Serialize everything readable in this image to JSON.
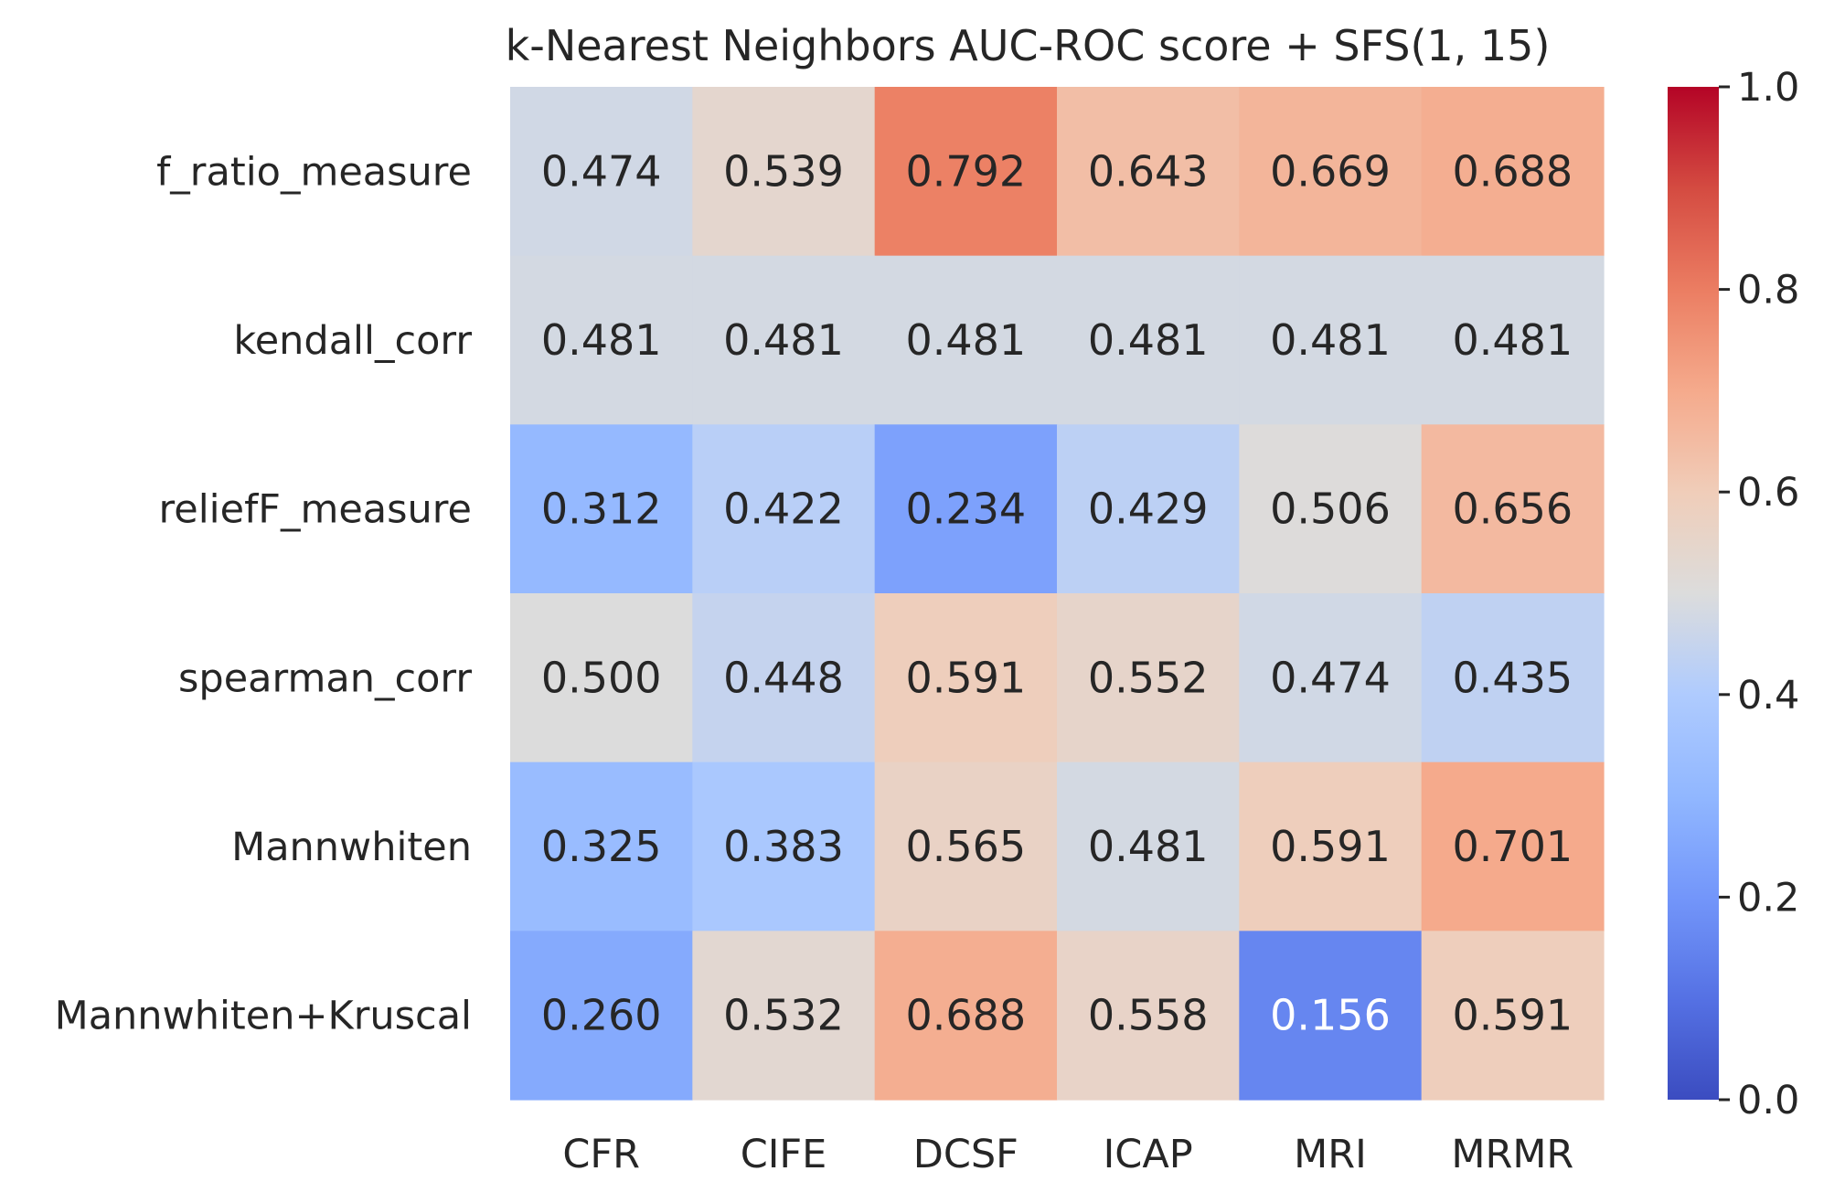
{
  "chart_data": {
    "type": "heatmap",
    "title": "k-Nearest Neighbors AUC-ROC score + SFS(1, 15)",
    "xlabel": "",
    "ylabel": "",
    "columns": [
      "CFR",
      "CIFE",
      "DCSF",
      "ICAP",
      "MRI",
      "MRMR"
    ],
    "rows": [
      "f_ratio_measure",
      "kendall_corr",
      "reliefF_measure",
      "spearman_corr",
      "Mannwhiten",
      "Mannwhiten+Kruscal"
    ],
    "values": [
      [
        0.474,
        0.539,
        0.792,
        0.643,
        0.669,
        0.688
      ],
      [
        0.481,
        0.481,
        0.481,
        0.481,
        0.481,
        0.481
      ],
      [
        0.312,
        0.422,
        0.234,
        0.429,
        0.506,
        0.656
      ],
      [
        0.5,
        0.448,
        0.591,
        0.552,
        0.474,
        0.435
      ],
      [
        0.325,
        0.383,
        0.565,
        0.481,
        0.591,
        0.701
      ],
      [
        0.26,
        0.532,
        0.688,
        0.558,
        0.156,
        0.591
      ]
    ],
    "value_labels": [
      [
        "0.474",
        "0.539",
        "0.792",
        "0.643",
        "0.669",
        "0.688"
      ],
      [
        "0.481",
        "0.481",
        "0.481",
        "0.481",
        "0.481",
        "0.481"
      ],
      [
        "0.312",
        "0.422",
        "0.234",
        "0.429",
        "0.506",
        "0.656"
      ],
      [
        "0.500",
        "0.448",
        "0.591",
        "0.552",
        "0.474",
        "0.435"
      ],
      [
        "0.325",
        "0.383",
        "0.565",
        "0.481",
        "0.591",
        "0.701"
      ],
      [
        "0.260",
        "0.532",
        "0.688",
        "0.558",
        "0.156",
        "0.591"
      ]
    ],
    "colormap": "coolwarm",
    "vmin": 0.0,
    "vmax": 1.0,
    "colorbar_ticks": [
      "0.0",
      "0.2",
      "0.4",
      "0.6",
      "0.8",
      "1.0"
    ],
    "colors": {
      "low": "#3b4cc0",
      "mid": "#dddddd",
      "high": "#b40426"
    }
  }
}
